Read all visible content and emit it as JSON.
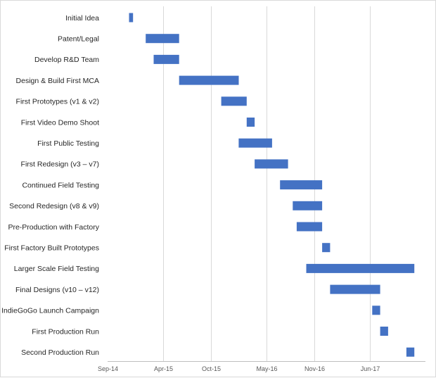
{
  "chart_data": {
    "type": "bar",
    "orientation": "horizontal-gantt",
    "title": "",
    "xlabel": "",
    "ylabel": "",
    "x_unit": "months since Sep-14",
    "xlim": [
      0,
      40
    ],
    "x_ticks": [
      {
        "label": "Sep-14",
        "value": 0
      },
      {
        "label": "Apr-15",
        "value": 7
      },
      {
        "label": "Oct-15",
        "value": 13
      },
      {
        "label": "May-16",
        "value": 20
      },
      {
        "label": "Nov-16",
        "value": 26
      },
      {
        "label": "Jun-17",
        "value": 33
      }
    ],
    "grid": true,
    "bar_color": "#4472c4",
    "tasks": [
      {
        "name": "Initial Idea",
        "start": 2.7,
        "end": 3.2
      },
      {
        "name": "Patent/Legal",
        "start": 4.8,
        "end": 9.0
      },
      {
        "name": "Develop R&D Team",
        "start": 5.8,
        "end": 9.0
      },
      {
        "name": "Design & Build First MCA",
        "start": 9.0,
        "end": 16.5
      },
      {
        "name": "First Prototypes (v1 & v2)",
        "start": 14.3,
        "end": 17.5
      },
      {
        "name": "First Video Demo Shoot",
        "start": 17.5,
        "end": 18.5
      },
      {
        "name": "First Public Testing",
        "start": 16.5,
        "end": 20.7
      },
      {
        "name": "First Redesign (v3 – v7)",
        "start": 18.5,
        "end": 22.7
      },
      {
        "name": "Continued Field Testing",
        "start": 21.7,
        "end": 27.0
      },
      {
        "name": "Second Redesign (v8 & v9)",
        "start": 23.3,
        "end": 27.0
      },
      {
        "name": "Pre-Production with Factory",
        "start": 23.8,
        "end": 27.0
      },
      {
        "name": "First Factory Built Prototypes",
        "start": 27.0,
        "end": 28.0
      },
      {
        "name": "Larger Scale Field Testing",
        "start": 25.0,
        "end": 38.6
      },
      {
        "name": "Final Designs (v10 – v12)",
        "start": 28.0,
        "end": 34.3
      },
      {
        "name": "IndieGoGo Launch Campaign",
        "start": 33.3,
        "end": 34.3
      },
      {
        "name": "First Production Run",
        "start": 34.3,
        "end": 35.3
      },
      {
        "name": "Second Production Run",
        "start": 37.6,
        "end": 38.6
      }
    ]
  }
}
